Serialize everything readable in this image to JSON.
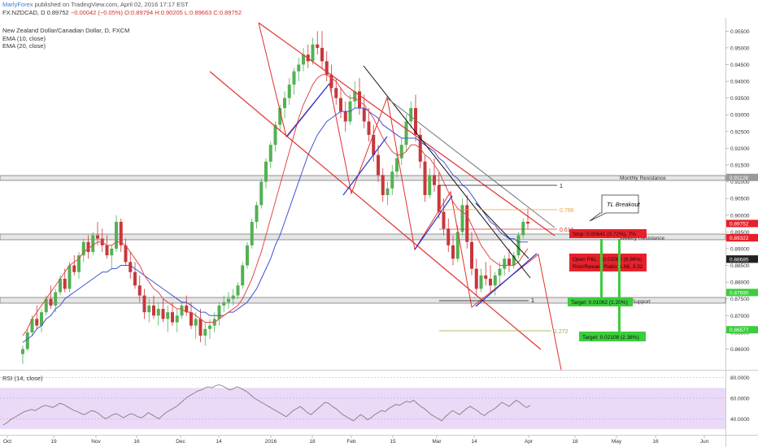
{
  "header": {
    "brand": "MarlyForex",
    "published": "published on TradingView.com, April 02, 2016 17:17 EST"
  },
  "symbol": {
    "ticker": "FX:NZDCAD, D",
    "last": "0.89752",
    "change": "−0.00042 (−0.05%)",
    "ohlc": "O:0.89794 H:0.90205 L:0.89663 C:0.89752"
  },
  "legend": {
    "title": "New Zealand Dollar/Canadian Dollar, D, FXCM",
    "ema10": "EMA (10, close)",
    "ema20": "EMA (20, close)"
  },
  "rsi": {
    "label": "RSI (14, close)",
    "ticks": [
      "80.0000",
      "60.0000",
      "40.0000"
    ],
    "tick_values": [
      80,
      60,
      40
    ],
    "range": [
      26,
      86
    ],
    "band": [
      30,
      70
    ],
    "values": [
      34,
      36,
      39,
      41,
      43,
      45,
      47,
      48,
      49,
      48,
      50,
      52,
      53,
      52,
      51,
      53,
      55,
      54,
      52,
      50,
      48,
      47,
      45,
      44,
      46,
      48,
      47,
      45,
      42,
      40,
      42,
      44,
      45,
      43,
      41,
      43,
      45,
      44,
      42,
      41,
      43,
      46,
      44,
      42,
      40,
      43,
      46,
      48,
      50,
      52,
      55,
      58,
      61,
      63,
      65,
      67,
      68,
      70,
      71,
      70,
      72,
      73,
      72,
      70,
      68,
      69,
      71,
      70,
      68,
      66,
      63,
      60,
      58,
      56,
      54,
      52,
      50,
      48,
      46,
      44,
      42,
      45,
      48,
      50,
      52,
      49,
      46,
      44,
      47,
      50,
      53,
      56,
      55,
      52,
      50,
      47,
      44,
      42,
      40,
      38,
      41,
      44,
      42,
      39,
      41,
      44,
      46,
      48,
      47,
      50,
      52,
      54,
      53,
      55,
      57,
      56,
      58,
      55,
      52,
      50,
      47,
      44,
      42,
      40,
      38,
      42,
      45,
      48,
      46,
      44,
      47,
      50,
      52,
      50,
      48,
      45,
      43,
      46,
      48,
      50,
      53,
      56,
      54,
      52,
      55,
      58,
      56,
      53,
      51,
      53
    ]
  },
  "annotations": {
    "tl_breakout": "TL Breakout",
    "fib_786": "0.786",
    "fib_618": "0.618",
    "fib_1272": "1.272",
    "one_top": "1",
    "one_bottom": "1",
    "monthly_resistance": "Monthly Resistance",
    "weekly_resistance": "Weekly Resistance",
    "support": "y Support",
    "stop": "Stop: 0.00641 (0.72%), 7%",
    "open_pl": "Open P&L: −0.01062 (6.98%)",
    "risk_reward": "Risk/Reward Ratio: 1.66, 3.32",
    "target1": "Target: 0.01062 (1.20%)",
    "target2": "Target: 0.02108 (2.38%)"
  },
  "colors": {
    "up": "#53b153",
    "down": "#c9373a",
    "ema10": "#e04a4a",
    "ema20": "#3f51d6",
    "channel": "#e33030",
    "blue_line": "#2233cc",
    "fib_orange": "#f0a030",
    "fib_olive": "#9aa83a",
    "rsi_band": "#ead9f7",
    "rsi_line": "#808080",
    "stop_box": "#e8202a",
    "target_box": "#3ccd3c"
  },
  "chart_data": {
    "type": "candlestick",
    "x_ticks": [
      "Oct",
      "19",
      "Nov",
      "16",
      "Dec",
      "14",
      "2016",
      "18",
      "Feb",
      "15",
      "Mar",
      "14",
      "Apr",
      "18",
      "May",
      "16",
      "Jun"
    ],
    "y_ticks": [
      "0.95500",
      "0.95000",
      "0.94500",
      "0.94000",
      "0.93500",
      "0.93000",
      "0.92500",
      "0.92000",
      "0.91500",
      "0.91000",
      "0.90500",
      "0.90000",
      "0.89500",
      "0.89000",
      "0.88500",
      "0.88000",
      "0.87500",
      "0.87000",
      "0.86500",
      "0.86000"
    ],
    "y_tick_values": [
      0.955,
      0.95,
      0.945,
      0.94,
      0.935,
      0.93,
      0.925,
      0.92,
      0.915,
      0.91,
      0.905,
      0.9,
      0.895,
      0.89,
      0.885,
      0.88,
      0.875,
      0.87,
      0.865,
      0.86
    ],
    "ylim": [
      0.8555,
      0.9575
    ],
    "price_tags": [
      {
        "label": "0.91128",
        "value": 0.91128,
        "color": "#999999"
      },
      {
        "label": "0.89752",
        "value": 0.89752,
        "color": "#e8202a"
      },
      {
        "label": "0.89331",
        "value": 0.89331,
        "color": "#e8202a"
      },
      {
        "label": "0.89322",
        "value": 0.89322,
        "color": "#e8202a"
      },
      {
        "label": "0.88690",
        "value": 0.8869,
        "color": "#222222"
      },
      {
        "label": "0.88685",
        "value": 0.88685,
        "color": "#222222"
      },
      {
        "label": "0.87690",
        "value": 0.8769,
        "color": "#3ccd3c"
      },
      {
        "label": "0.86577",
        "value": 0.86577,
        "color": "#3ccd3c"
      }
    ],
    "candles": [
      [
        0.8585,
        0.861,
        0.8555,
        0.86
      ],
      [
        0.86,
        0.866,
        0.8595,
        0.865
      ],
      [
        0.865,
        0.87,
        0.864,
        0.869
      ],
      [
        0.869,
        0.873,
        0.866,
        0.867
      ],
      [
        0.867,
        0.872,
        0.865,
        0.871
      ],
      [
        0.871,
        0.876,
        0.87,
        0.875
      ],
      [
        0.875,
        0.879,
        0.872,
        0.873
      ],
      [
        0.873,
        0.878,
        0.871,
        0.877
      ],
      [
        0.877,
        0.882,
        0.876,
        0.881
      ],
      [
        0.881,
        0.884,
        0.877,
        0.878
      ],
      [
        0.878,
        0.886,
        0.877,
        0.885
      ],
      [
        0.885,
        0.888,
        0.882,
        0.883
      ],
      [
        0.883,
        0.889,
        0.881,
        0.888
      ],
      [
        0.888,
        0.893,
        0.886,
        0.892
      ],
      [
        0.892,
        0.894,
        0.887,
        0.889
      ],
      [
        0.889,
        0.895,
        0.888,
        0.894
      ],
      [
        0.894,
        0.898,
        0.891,
        0.893
      ],
      [
        0.893,
        0.896,
        0.889,
        0.891
      ],
      [
        0.891,
        0.894,
        0.887,
        0.888
      ],
      [
        0.888,
        0.891,
        0.884,
        0.89
      ],
      [
        0.89,
        0.9,
        0.889,
        0.898
      ],
      [
        0.898,
        0.899,
        0.889,
        0.891
      ],
      [
        0.891,
        0.893,
        0.885,
        0.886
      ],
      [
        0.886,
        0.889,
        0.881,
        0.883
      ],
      [
        0.883,
        0.886,
        0.878,
        0.879
      ],
      [
        0.879,
        0.882,
        0.874,
        0.876
      ],
      [
        0.876,
        0.878,
        0.869,
        0.871
      ],
      [
        0.871,
        0.875,
        0.868,
        0.873
      ],
      [
        0.873,
        0.876,
        0.869,
        0.87
      ],
      [
        0.87,
        0.874,
        0.867,
        0.872
      ],
      [
        0.872,
        0.875,
        0.868,
        0.869
      ],
      [
        0.869,
        0.873,
        0.865,
        0.871
      ],
      [
        0.871,
        0.874,
        0.867,
        0.868
      ],
      [
        0.868,
        0.872,
        0.865,
        0.87
      ],
      [
        0.87,
        0.874,
        0.869,
        0.873
      ],
      [
        0.873,
        0.876,
        0.87,
        0.871
      ],
      [
        0.871,
        0.874,
        0.866,
        0.867
      ],
      [
        0.867,
        0.871,
        0.863,
        0.869
      ],
      [
        0.869,
        0.872,
        0.862,
        0.864
      ],
      [
        0.864,
        0.868,
        0.861,
        0.866
      ],
      [
        0.866,
        0.869,
        0.863,
        0.867
      ],
      [
        0.867,
        0.871,
        0.865,
        0.869
      ],
      [
        0.869,
        0.874,
        0.867,
        0.873
      ],
      [
        0.873,
        0.876,
        0.871,
        0.874
      ],
      [
        0.874,
        0.877,
        0.872,
        0.875
      ],
      [
        0.875,
        0.878,
        0.873,
        0.876
      ],
      [
        0.876,
        0.88,
        0.875,
        0.879
      ],
      [
        0.879,
        0.886,
        0.878,
        0.885
      ],
      [
        0.885,
        0.892,
        0.884,
        0.891
      ],
      [
        0.891,
        0.899,
        0.89,
        0.898
      ],
      [
        0.898,
        0.904,
        0.896,
        0.903
      ],
      [
        0.903,
        0.911,
        0.902,
        0.91
      ],
      [
        0.91,
        0.917,
        0.908,
        0.916
      ],
      [
        0.916,
        0.922,
        0.914,
        0.921
      ],
      [
        0.921,
        0.928,
        0.919,
        0.927
      ],
      [
        0.927,
        0.933,
        0.925,
        0.932
      ],
      [
        0.932,
        0.937,
        0.929,
        0.935
      ],
      [
        0.935,
        0.941,
        0.933,
        0.939
      ],
      [
        0.939,
        0.944,
        0.936,
        0.943
      ],
      [
        0.943,
        0.947,
        0.94,
        0.945
      ],
      [
        0.945,
        0.95,
        0.943,
        0.948
      ],
      [
        0.948,
        0.951,
        0.944,
        0.946
      ],
      [
        0.946,
        0.953,
        0.945,
        0.951
      ],
      [
        0.951,
        0.955,
        0.948,
        0.95
      ],
      [
        0.95,
        0.955,
        0.944,
        0.946
      ],
      [
        0.946,
        0.949,
        0.94,
        0.942
      ],
      [
        0.942,
        0.945,
        0.936,
        0.938
      ],
      [
        0.938,
        0.941,
        0.933,
        0.935
      ],
      [
        0.935,
        0.938,
        0.929,
        0.931
      ],
      [
        0.931,
        0.934,
        0.925,
        0.928
      ],
      [
        0.928,
        0.936,
        0.927,
        0.934
      ],
      [
        0.934,
        0.94,
        0.932,
        0.937
      ],
      [
        0.937,
        0.941,
        0.93,
        0.932
      ],
      [
        0.932,
        0.936,
        0.926,
        0.928
      ],
      [
        0.928,
        0.932,
        0.922,
        0.924
      ],
      [
        0.924,
        0.927,
        0.916,
        0.918
      ],
      [
        0.918,
        0.921,
        0.91,
        0.912
      ],
      [
        0.912,
        0.914,
        0.904,
        0.906
      ],
      [
        0.906,
        0.91,
        0.903,
        0.908
      ],
      [
        0.908,
        0.915,
        0.906,
        0.913
      ],
      [
        0.913,
        0.919,
        0.911,
        0.917
      ],
      [
        0.917,
        0.923,
        0.915,
        0.921
      ],
      [
        0.921,
        0.93,
        0.919,
        0.928
      ],
      [
        0.928,
        0.934,
        0.926,
        0.932
      ],
      [
        0.932,
        0.936,
        0.922,
        0.924
      ],
      [
        0.924,
        0.926,
        0.914,
        0.916
      ],
      [
        0.916,
        0.918,
        0.904,
        0.906
      ],
      [
        0.906,
        0.914,
        0.905,
        0.912
      ],
      [
        0.912,
        0.917,
        0.907,
        0.909
      ],
      [
        0.909,
        0.913,
        0.899,
        0.901
      ],
      [
        0.901,
        0.905,
        0.894,
        0.896
      ],
      [
        0.896,
        0.899,
        0.889,
        0.891
      ],
      [
        0.891,
        0.894,
        0.885,
        0.887
      ],
      [
        0.887,
        0.897,
        0.886,
        0.895
      ],
      [
        0.895,
        0.905,
        0.894,
        0.903
      ],
      [
        0.903,
        0.906,
        0.89,
        0.892
      ],
      [
        0.892,
        0.895,
        0.882,
        0.884
      ],
      [
        0.884,
        0.887,
        0.876,
        0.878
      ],
      [
        0.878,
        0.884,
        0.877,
        0.882
      ],
      [
        0.882,
        0.886,
        0.879,
        0.881
      ],
      [
        0.881,
        0.885,
        0.877,
        0.879
      ],
      [
        0.879,
        0.883,
        0.876,
        0.882
      ],
      [
        0.882,
        0.886,
        0.879,
        0.884
      ],
      [
        0.884,
        0.888,
        0.882,
        0.887
      ],
      [
        0.887,
        0.89,
        0.883,
        0.885
      ],
      [
        0.885,
        0.889,
        0.884,
        0.888
      ],
      [
        0.888,
        0.895,
        0.887,
        0.894
      ],
      [
        0.894,
        0.899,
        0.893,
        0.898
      ],
      [
        0.898,
        0.902,
        0.896,
        0.8975
      ]
    ],
    "ema10": [
      0.864,
      0.866,
      0.869,
      0.871,
      0.873,
      0.875,
      0.877,
      0.879,
      0.881,
      0.883,
      0.885,
      0.886,
      0.887,
      0.889,
      0.89,
      0.891,
      0.892,
      0.892,
      0.891,
      0.891,
      0.892,
      0.892,
      0.891,
      0.889,
      0.887,
      0.885,
      0.882,
      0.88,
      0.878,
      0.877,
      0.875,
      0.874,
      0.873,
      0.872,
      0.872,
      0.871,
      0.871,
      0.87,
      0.869,
      0.868,
      0.868,
      0.868,
      0.869,
      0.87,
      0.871,
      0.872,
      0.873,
      0.875,
      0.878,
      0.881,
      0.885,
      0.889,
      0.894,
      0.899,
      0.904,
      0.909,
      0.914,
      0.919,
      0.924,
      0.929,
      0.933,
      0.936,
      0.939,
      0.941,
      0.942,
      0.942,
      0.941,
      0.94,
      0.938,
      0.936,
      0.935,
      0.935,
      0.934,
      0.933,
      0.931,
      0.929,
      0.926,
      0.923,
      0.921,
      0.919,
      0.918,
      0.918,
      0.919,
      0.921,
      0.921,
      0.92,
      0.918,
      0.917,
      0.915,
      0.913,
      0.91,
      0.907,
      0.904,
      0.902,
      0.901,
      0.9,
      0.897,
      0.894,
      0.891,
      0.889,
      0.887,
      0.886,
      0.885,
      0.885,
      0.885,
      0.885,
      0.886,
      0.888,
      0.89
    ],
    "ema20": [
      0.862,
      0.863,
      0.864,
      0.866,
      0.867,
      0.869,
      0.87,
      0.872,
      0.873,
      0.875,
      0.876,
      0.877,
      0.878,
      0.879,
      0.88,
      0.881,
      0.882,
      0.883,
      0.883,
      0.884,
      0.884,
      0.885,
      0.885,
      0.885,
      0.884,
      0.883,
      0.882,
      0.881,
      0.88,
      0.879,
      0.878,
      0.877,
      0.876,
      0.875,
      0.874,
      0.874,
      0.873,
      0.872,
      0.871,
      0.871,
      0.87,
      0.87,
      0.87,
      0.87,
      0.871,
      0.871,
      0.872,
      0.873,
      0.874,
      0.876,
      0.878,
      0.881,
      0.884,
      0.887,
      0.891,
      0.894,
      0.898,
      0.902,
      0.906,
      0.91,
      0.914,
      0.918,
      0.921,
      0.924,
      0.926,
      0.928,
      0.929,
      0.93,
      0.931,
      0.931,
      0.931,
      0.932,
      0.932,
      0.932,
      0.931,
      0.93,
      0.929,
      0.927,
      0.926,
      0.925,
      0.924,
      0.923,
      0.923,
      0.923,
      0.923,
      0.922,
      0.921,
      0.92,
      0.919,
      0.917,
      0.916,
      0.914,
      0.912,
      0.911,
      0.909,
      0.908,
      0.906,
      0.904,
      0.902,
      0.9,
      0.898,
      0.897,
      0.895,
      0.894,
      0.893,
      0.893,
      0.892,
      0.892,
      0.892
    ]
  }
}
